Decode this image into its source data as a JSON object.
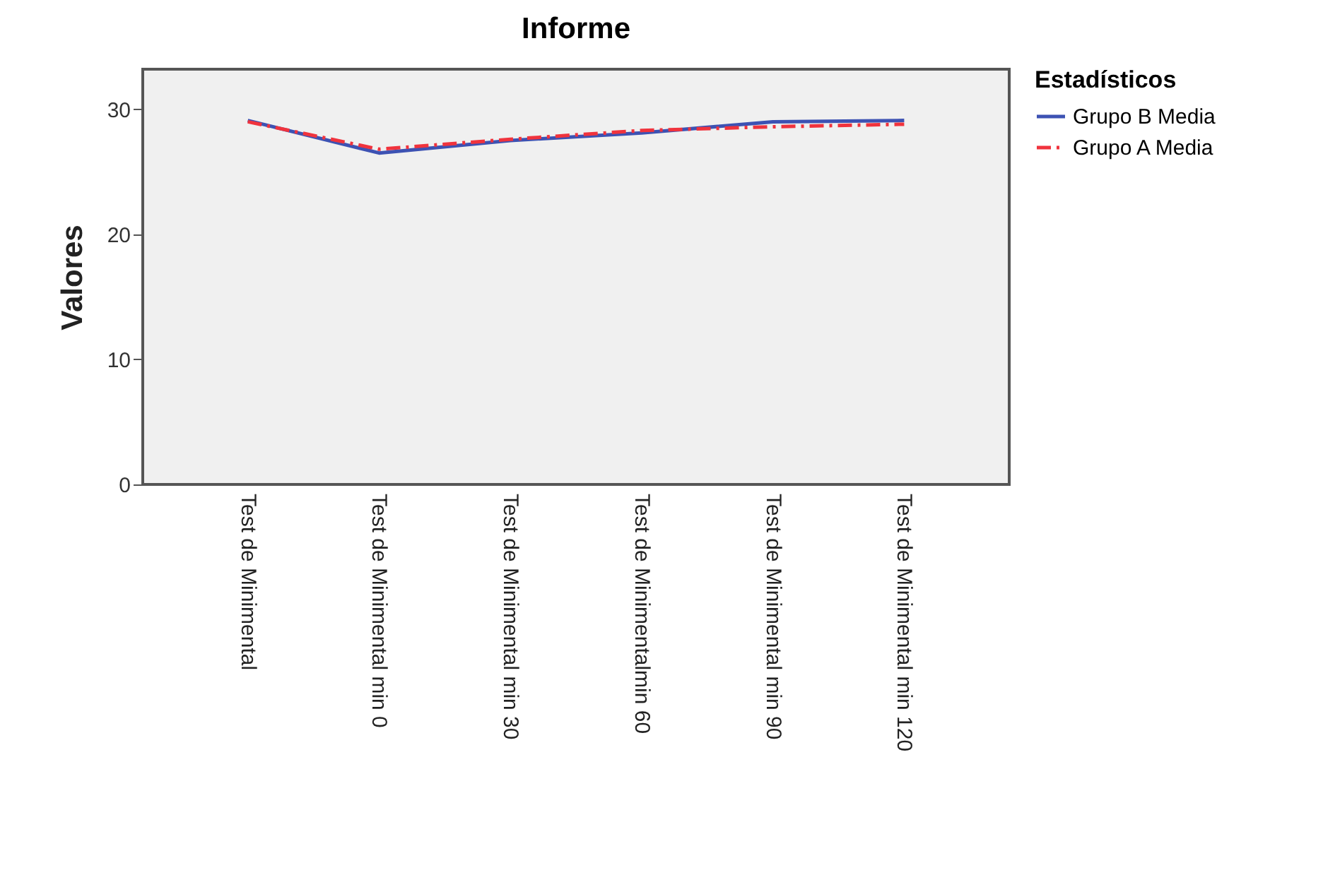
{
  "chart_data": {
    "type": "line",
    "title": "Informe",
    "ylabel": "Valores",
    "legend_title": "Estadísticos",
    "categories": [
      "Test de Minimental",
      "Test de Minimental min 0",
      "Test de Minimental min 30",
      "Test de Minimentalmin 60",
      "Test de Minimental min 90",
      "Test de Minimental min 120"
    ],
    "series": [
      {
        "name": "Grupo B Media",
        "color": "#3d52b3",
        "line_style": "solid",
        "values": [
          29.1,
          26.5,
          27.5,
          28.1,
          29.0,
          29.1
        ]
      },
      {
        "name": "Grupo A Media",
        "color": "#f0333d",
        "line_style": "dashed",
        "values": [
          29.0,
          26.8,
          27.6,
          28.3,
          28.6,
          28.8
        ]
      }
    ],
    "ylim": [
      0,
      33.2
    ],
    "yticks": [
      0,
      10,
      20,
      30
    ],
    "grid": false,
    "legend": "right",
    "marker": "none"
  }
}
